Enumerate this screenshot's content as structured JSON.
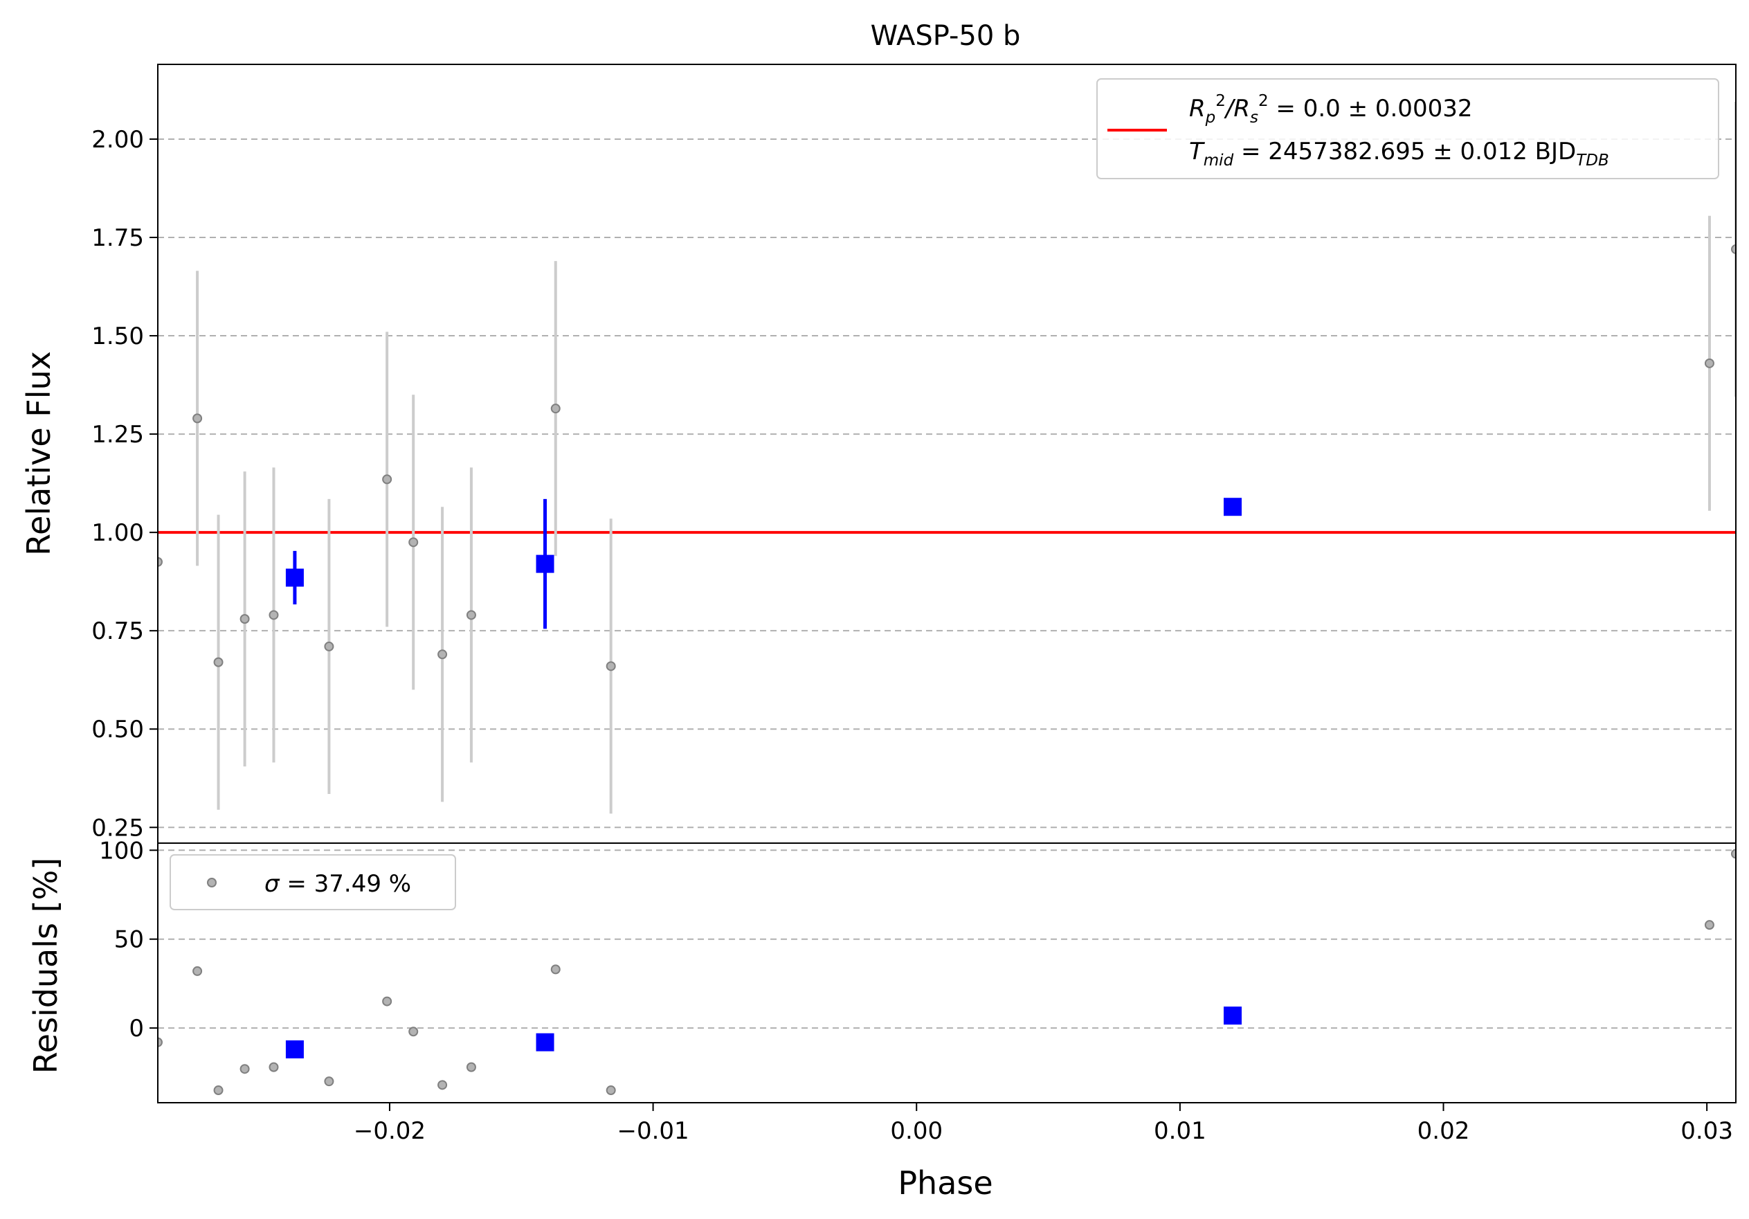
{
  "chart_data": [
    {
      "type": "scatter",
      "panel": "top",
      "title": "WASP-50 b",
      "xlabel": "",
      "ylabel": "Relative Flux",
      "xlim": [
        -0.0288,
        0.0311
      ],
      "ylim": [
        0.21,
        2.19
      ],
      "yticks": [
        0.25,
        0.5,
        0.75,
        1.0,
        1.25,
        1.5,
        1.75,
        2.0
      ],
      "ytick_labels": [
        "0.25",
        "0.50",
        "0.75",
        "1.00",
        "1.25",
        "1.50",
        "1.75",
        "2.00"
      ],
      "grid": "horizontal dashed",
      "legend_placement": "top-right",
      "legend": {
        "line1_main": "R",
        "line1_sub_p": "p",
        "line1_sup_2a": "2",
        "line1_slash": "/R",
        "line1_sub_s": "s",
        "line1_sup_2b": "2",
        "line1_rest": " = 0.0 ± 0.00032",
        "line2_main": "T",
        "line2_sub": "mid",
        "line2_rest": " = 2457382.695 ± 0.012 BJD",
        "line2_tail_sub": "TDB"
      },
      "model": {
        "name": "model",
        "y": 1.0,
        "color": "#ff0000"
      },
      "colors": {
        "raw_point": "#808080",
        "raw_errorbar": "#cccccc",
        "binned": "#0000ff",
        "model": "#ff0000",
        "grid": "#b0b0b0"
      },
      "series": [
        {
          "name": "raw",
          "points": [
            {
              "x": -0.0288,
              "y": 0.925,
              "err": 0.0
            },
            {
              "x": -0.0273,
              "y": 1.29,
              "err": 0.375
            },
            {
              "x": -0.0265,
              "y": 0.67,
              "err": 0.375
            },
            {
              "x": -0.0255,
              "y": 0.78,
              "err": 0.375
            },
            {
              "x": -0.0244,
              "y": 0.79,
              "err": 0.375
            },
            {
              "x": -0.0223,
              "y": 0.71,
              "err": 0.375
            },
            {
              "x": -0.0201,
              "y": 1.135,
              "err": 0.375
            },
            {
              "x": -0.0191,
              "y": 0.975,
              "err": 0.375
            },
            {
              "x": -0.018,
              "y": 0.69,
              "err": 0.375
            },
            {
              "x": -0.0169,
              "y": 0.79,
              "err": 0.375
            },
            {
              "x": -0.0137,
              "y": 1.315,
              "err": 0.375
            },
            {
              "x": -0.0116,
              "y": 0.66,
              "err": 0.375
            },
            {
              "x": 0.0301,
              "y": 1.43,
              "err": 0.375
            },
            {
              "x": 0.0311,
              "y": 1.72,
              "err": 0.375
            }
          ]
        },
        {
          "name": "binned",
          "points": [
            {
              "x": -0.0236,
              "y": 0.885,
              "err": 0.068
            },
            {
              "x": -0.0141,
              "y": 0.92,
              "err": 0.165
            },
            {
              "x": 0.012,
              "y": 1.065,
              "err": 0.0
            }
          ]
        }
      ]
    },
    {
      "type": "scatter",
      "panel": "bottom",
      "xlabel": "Phase",
      "ylabel": "Residuals [%]",
      "xlim": [
        -0.0288,
        0.0311
      ],
      "ylim": [
        -42,
        104
      ],
      "xticks": [
        -0.02,
        -0.01,
        0.0,
        0.01,
        0.02,
        0.03
      ],
      "xtick_labels": [
        "−0.02",
        "−0.01",
        "0.00",
        "0.01",
        "0.02",
        "0.03"
      ],
      "yticks": [
        0,
        50,
        100
      ],
      "ytick_labels": [
        "0",
        "50",
        "100"
      ],
      "grid": "horizontal dashed",
      "legend_placement": "top-left",
      "legend": {
        "sigma_symbol": "σ",
        "sigma_text": " = 37.49 %"
      },
      "series": [
        {
          "name": "raw",
          "points": [
            {
              "x": -0.0288,
              "y": -8
            },
            {
              "x": -0.0273,
              "y": 32
            },
            {
              "x": -0.0265,
              "y": -35
            },
            {
              "x": -0.0255,
              "y": -23
            },
            {
              "x": -0.0244,
              "y": -22
            },
            {
              "x": -0.0223,
              "y": -30
            },
            {
              "x": -0.0201,
              "y": 15
            },
            {
              "x": -0.0191,
              "y": -2
            },
            {
              "x": -0.018,
              "y": -32
            },
            {
              "x": -0.0169,
              "y": -22
            },
            {
              "x": -0.0137,
              "y": 33
            },
            {
              "x": -0.0116,
              "y": -35
            },
            {
              "x": 0.0301,
              "y": 58
            },
            {
              "x": 0.0311,
              "y": 98
            }
          ]
        },
        {
          "name": "binned",
          "points": [
            {
              "x": -0.0236,
              "y": -12
            },
            {
              "x": -0.0141,
              "y": -8
            },
            {
              "x": 0.012,
              "y": 7
            }
          ]
        }
      ]
    }
  ]
}
